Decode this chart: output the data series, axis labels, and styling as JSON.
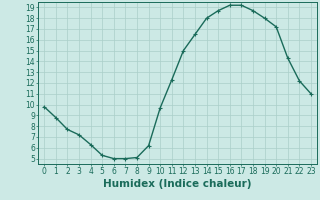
{
  "x": [
    0,
    1,
    2,
    3,
    4,
    5,
    6,
    7,
    8,
    9,
    10,
    11,
    12,
    13,
    14,
    15,
    16,
    17,
    18,
    19,
    20,
    21,
    22,
    23
  ],
  "y": [
    9.8,
    8.8,
    7.7,
    7.2,
    6.3,
    5.3,
    5.0,
    5.0,
    5.1,
    6.2,
    9.7,
    12.3,
    15.0,
    16.5,
    18.0,
    18.7,
    19.2,
    19.2,
    18.7,
    18.0,
    17.2,
    14.3,
    12.2,
    11.0
  ],
  "line_color": "#1a6b5a",
  "marker": "+",
  "marker_size": 3.5,
  "marker_linewidth": 0.8,
  "background_color": "#cce9e5",
  "grid_color": "#aacfc9",
  "xlabel": "Humidex (Indice chaleur)",
  "xlim": [
    -0.5,
    23.5
  ],
  "ylim": [
    4.5,
    19.5
  ],
  "yticks": [
    5,
    6,
    7,
    8,
    9,
    10,
    11,
    12,
    13,
    14,
    15,
    16,
    17,
    18,
    19
  ],
  "xticks": [
    0,
    1,
    2,
    3,
    4,
    5,
    6,
    7,
    8,
    9,
    10,
    11,
    12,
    13,
    14,
    15,
    16,
    17,
    18,
    19,
    20,
    21,
    22,
    23
  ],
  "tick_fontsize": 5.5,
  "xlabel_fontsize": 7.5,
  "tick_color": "#1a6b5a",
  "axis_color": "#1a6b5a",
  "linewidth": 1.0
}
